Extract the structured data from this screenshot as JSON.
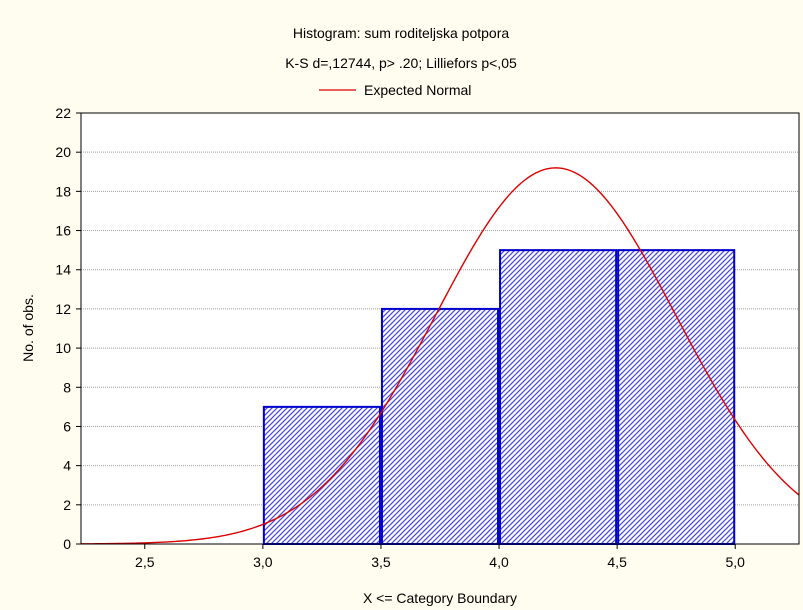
{
  "chart_data": {
    "type": "histogram",
    "title": "Histogram: sum roditeljska potpora",
    "subtitle": "K-S d=,12744, p> .20; Lilliefors p<,05",
    "legend": {
      "position": "top-center",
      "entries": [
        {
          "name": "Expected Normal",
          "color": "#dd0000",
          "type": "line"
        }
      ]
    },
    "xlabel": "X <= Category Boundary",
    "ylabel": "No. of obs.",
    "xlim": [
      2.23,
      5.27
    ],
    "ylim": [
      0,
      22
    ],
    "x_ticks": [
      {
        "value": 2.5,
        "label": "2,5"
      },
      {
        "value": 3.0,
        "label": "3,0"
      },
      {
        "value": 3.5,
        "label": "3,5"
      },
      {
        "value": 4.0,
        "label": "4,0"
      },
      {
        "value": 4.5,
        "label": "4,5"
      },
      {
        "value": 5.0,
        "label": "5,0"
      }
    ],
    "y_ticks": [
      {
        "value": 0,
        "label": "0"
      },
      {
        "value": 2,
        "label": "2"
      },
      {
        "value": 4,
        "label": "4"
      },
      {
        "value": 6,
        "label": "6"
      },
      {
        "value": 8,
        "label": "8"
      },
      {
        "value": 10,
        "label": "10"
      },
      {
        "value": 12,
        "label": "12"
      },
      {
        "value": 14,
        "label": "14"
      },
      {
        "value": 16,
        "label": "16"
      },
      {
        "value": 18,
        "label": "18"
      },
      {
        "value": 20,
        "label": "20"
      },
      {
        "value": 22,
        "label": "22"
      }
    ],
    "grid": {
      "horizontal": true,
      "vertical": false
    },
    "bins": [
      {
        "x0": 3.0,
        "x1": 3.5,
        "count": 7
      },
      {
        "x0": 3.5,
        "x1": 4.0,
        "count": 12
      },
      {
        "x0": 4.0,
        "x1": 4.5,
        "count": 15
      },
      {
        "x0": 4.5,
        "x1": 5.0,
        "count": 15
      }
    ],
    "expected_normal": {
      "mean": 4.24,
      "sd": 0.51,
      "peak": 19.2
    },
    "colors": {
      "background": "#fffdf0",
      "plot_background": "#ffffff",
      "bar_stroke": "#0000cc",
      "bar_hatch": "#4a4adf",
      "curve": "#dd0000",
      "grid": "#a0a0a0",
      "axis": "#000000"
    }
  }
}
